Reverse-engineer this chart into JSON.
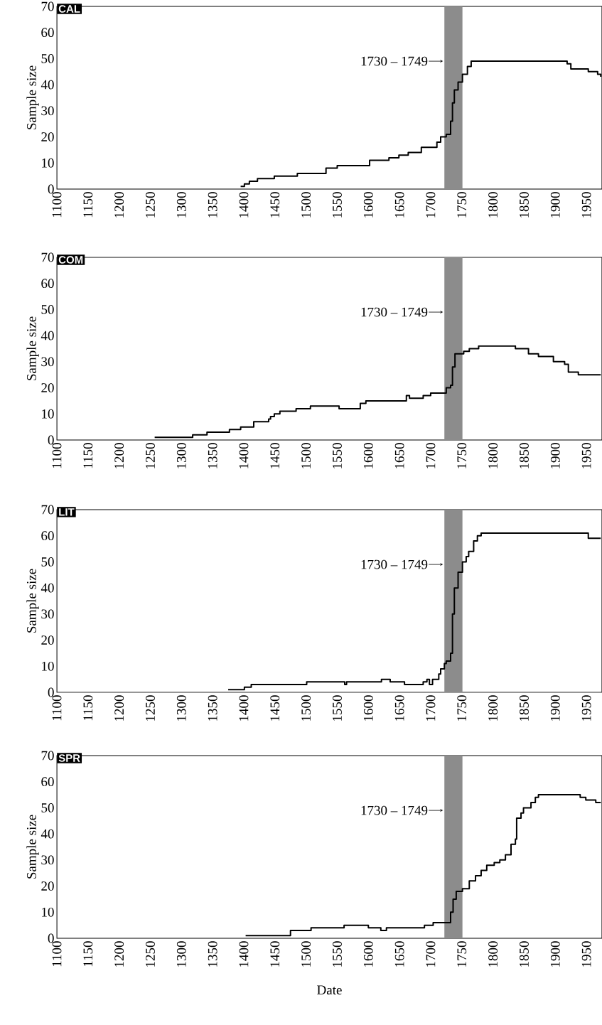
{
  "chart_data": [
    {
      "type": "step",
      "title": "CAL",
      "ylabel": "Sample size",
      "color": "#000000",
      "grid": false,
      "xlim": [
        1100,
        1975
      ],
      "ylim": [
        0,
        70
      ],
      "xticks": [
        1100,
        1150,
        1200,
        1250,
        1300,
        1350,
        1400,
        1450,
        1500,
        1550,
        1600,
        1650,
        1700,
        1750,
        1800,
        1850,
        1900,
        1950
      ],
      "yticks": [
        0,
        10,
        20,
        30,
        40,
        50,
        60,
        70
      ],
      "bands": [
        {
          "axis": "x",
          "from": 1722,
          "to": 1751,
          "label": "1730 – 1749",
          "color": "#8c8c8c"
        }
      ],
      "x": [
        1395,
        1401,
        1409,
        1422,
        1449,
        1486,
        1532,
        1550,
        1602,
        1633,
        1649,
        1664,
        1685,
        1710,
        1716,
        1725,
        1732,
        1735,
        1738,
        1744,
        1751,
        1759,
        1765,
        1919,
        1925,
        1931,
        1953,
        1968,
        1973
      ],
      "values": [
        1,
        2,
        3,
        4,
        5,
        6,
        8,
        9,
        11,
        12,
        13,
        14,
        16,
        18,
        20,
        21,
        26,
        33,
        38,
        41,
        44,
        47,
        49,
        48,
        46,
        46,
        45,
        44,
        43
      ]
    },
    {
      "type": "step",
      "title": "COM",
      "ylabel": "Sample size",
      "color": "#000000",
      "grid": false,
      "xlim": [
        1100,
        1975
      ],
      "ylim": [
        0,
        70
      ],
      "xticks": [
        1100,
        1150,
        1200,
        1250,
        1300,
        1350,
        1400,
        1450,
        1500,
        1550,
        1600,
        1650,
        1700,
        1750,
        1800,
        1850,
        1900,
        1950
      ],
      "yticks": [
        0,
        10,
        20,
        30,
        40,
        50,
        60,
        70
      ],
      "bands": [
        {
          "axis": "x",
          "from": 1722,
          "to": 1751,
          "label": "1730 – 1749",
          "color": "#8c8c8c"
        }
      ],
      "x": [
        1257,
        1318,
        1341,
        1377,
        1395,
        1416,
        1440,
        1443,
        1449,
        1458,
        1484,
        1507,
        1553,
        1587,
        1596,
        1661,
        1666,
        1688,
        1700,
        1725,
        1732,
        1735,
        1739,
        1753,
        1762,
        1777,
        1836,
        1857,
        1873,
        1897,
        1915,
        1921,
        1937,
        1973
      ],
      "values": [
        1,
        2,
        3,
        4,
        5,
        7,
        8,
        9,
        10,
        11,
        12,
        13,
        12,
        14,
        15,
        17,
        16,
        17,
        18,
        20,
        21,
        28,
        33,
        34,
        35,
        36,
        35,
        33,
        32,
        30,
        29,
        26,
        25,
        25
      ]
    },
    {
      "type": "step",
      "title": "LIT",
      "ylabel": "Sample size",
      "color": "#000000",
      "grid": false,
      "xlim": [
        1100,
        1975
      ],
      "ylim": [
        0,
        70
      ],
      "xticks": [
        1100,
        1150,
        1200,
        1250,
        1300,
        1350,
        1400,
        1450,
        1500,
        1550,
        1600,
        1650,
        1700,
        1750,
        1800,
        1850,
        1900,
        1950
      ],
      "yticks": [
        0,
        10,
        20,
        30,
        40,
        50,
        60,
        70
      ],
      "bands": [
        {
          "axis": "x",
          "from": 1722,
          "to": 1751,
          "label": "1730 – 1749",
          "color": "#8c8c8c"
        }
      ],
      "x": [
        1375,
        1401,
        1412,
        1501,
        1562,
        1565,
        1621,
        1635,
        1658,
        1688,
        1694,
        1698,
        1703,
        1713,
        1716,
        1722,
        1725,
        1732,
        1735,
        1738,
        1744,
        1751,
        1757,
        1761,
        1769,
        1775,
        1781,
        1953,
        1973
      ],
      "values": [
        1,
        2,
        3,
        4,
        3,
        4,
        5,
        4,
        3,
        4,
        5,
        3,
        5,
        7,
        9,
        11,
        12,
        15,
        30,
        40,
        46,
        50,
        52,
        54,
        58,
        60,
        61,
        59,
        59
      ]
    },
    {
      "type": "step",
      "title": "SPR",
      "ylabel": "Sample size",
      "xlabel": "Date",
      "color": "#000000",
      "grid": false,
      "xlim": [
        1100,
        1975
      ],
      "ylim": [
        0,
        70
      ],
      "xticks": [
        1100,
        1150,
        1200,
        1250,
        1300,
        1350,
        1400,
        1450,
        1500,
        1550,
        1600,
        1650,
        1700,
        1750,
        1800,
        1850,
        1900,
        1950
      ],
      "yticks": [
        0,
        10,
        20,
        30,
        40,
        50,
        60,
        70
      ],
      "bands": [
        {
          "axis": "x",
          "from": 1722,
          "to": 1751,
          "label": "1730 – 1749",
          "color": "#8c8c8c"
        }
      ],
      "x": [
        1403,
        1475,
        1508,
        1561,
        1600,
        1620,
        1629,
        1690,
        1704,
        1732,
        1736,
        1741,
        1751,
        1762,
        1772,
        1781,
        1790,
        1802,
        1811,
        1820,
        1829,
        1836,
        1838,
        1845,
        1849,
        1861,
        1868,
        1873,
        1940,
        1949,
        1965,
        1973
      ],
      "values": [
        1,
        3,
        4,
        5,
        4,
        3,
        4,
        5,
        6,
        10,
        15,
        18,
        19,
        22,
        24,
        26,
        28,
        29,
        30,
        32,
        36,
        38,
        46,
        48,
        50,
        52,
        54,
        55,
        54,
        53,
        52,
        52
      ]
    }
  ]
}
